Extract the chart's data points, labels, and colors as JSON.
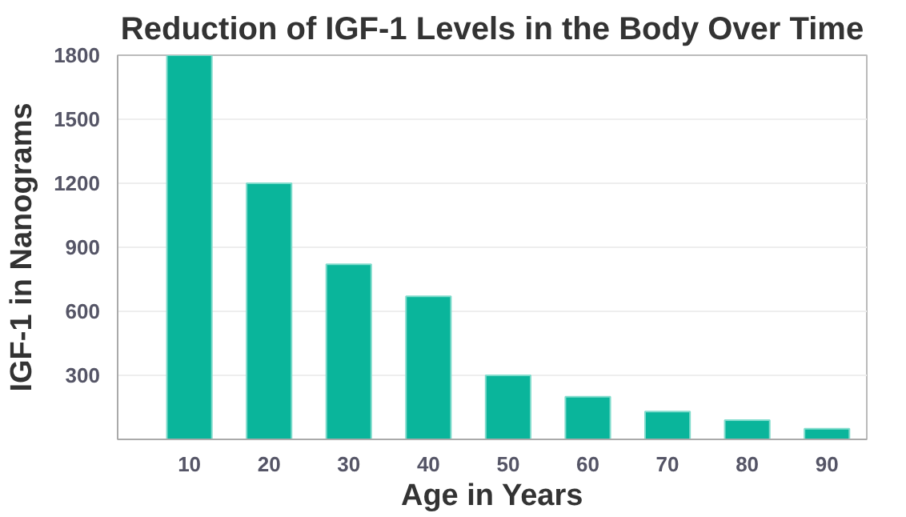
{
  "chart_data": {
    "type": "bar",
    "title": "Reduction of IGF-1 Levels in the Body Over Time",
    "xlabel": "Age in Years",
    "ylabel": "IGF-1 in Nanograms",
    "x": [
      10,
      20,
      30,
      40,
      50,
      60,
      70,
      80,
      90
    ],
    "values": [
      1800,
      1200,
      820,
      670,
      300,
      200,
      130,
      90,
      50
    ],
    "color": "#0ab59b",
    "xlim": [
      1,
      95
    ],
    "xticks": [
      10,
      20,
      30,
      40,
      50,
      60,
      70,
      80,
      90
    ],
    "ylim": [
      0,
      1800
    ],
    "yticks": [
      {
        "value": 0,
        "label": null
      },
      300,
      600,
      900,
      1200,
      1500,
      1800
    ],
    "grid": "y"
  }
}
